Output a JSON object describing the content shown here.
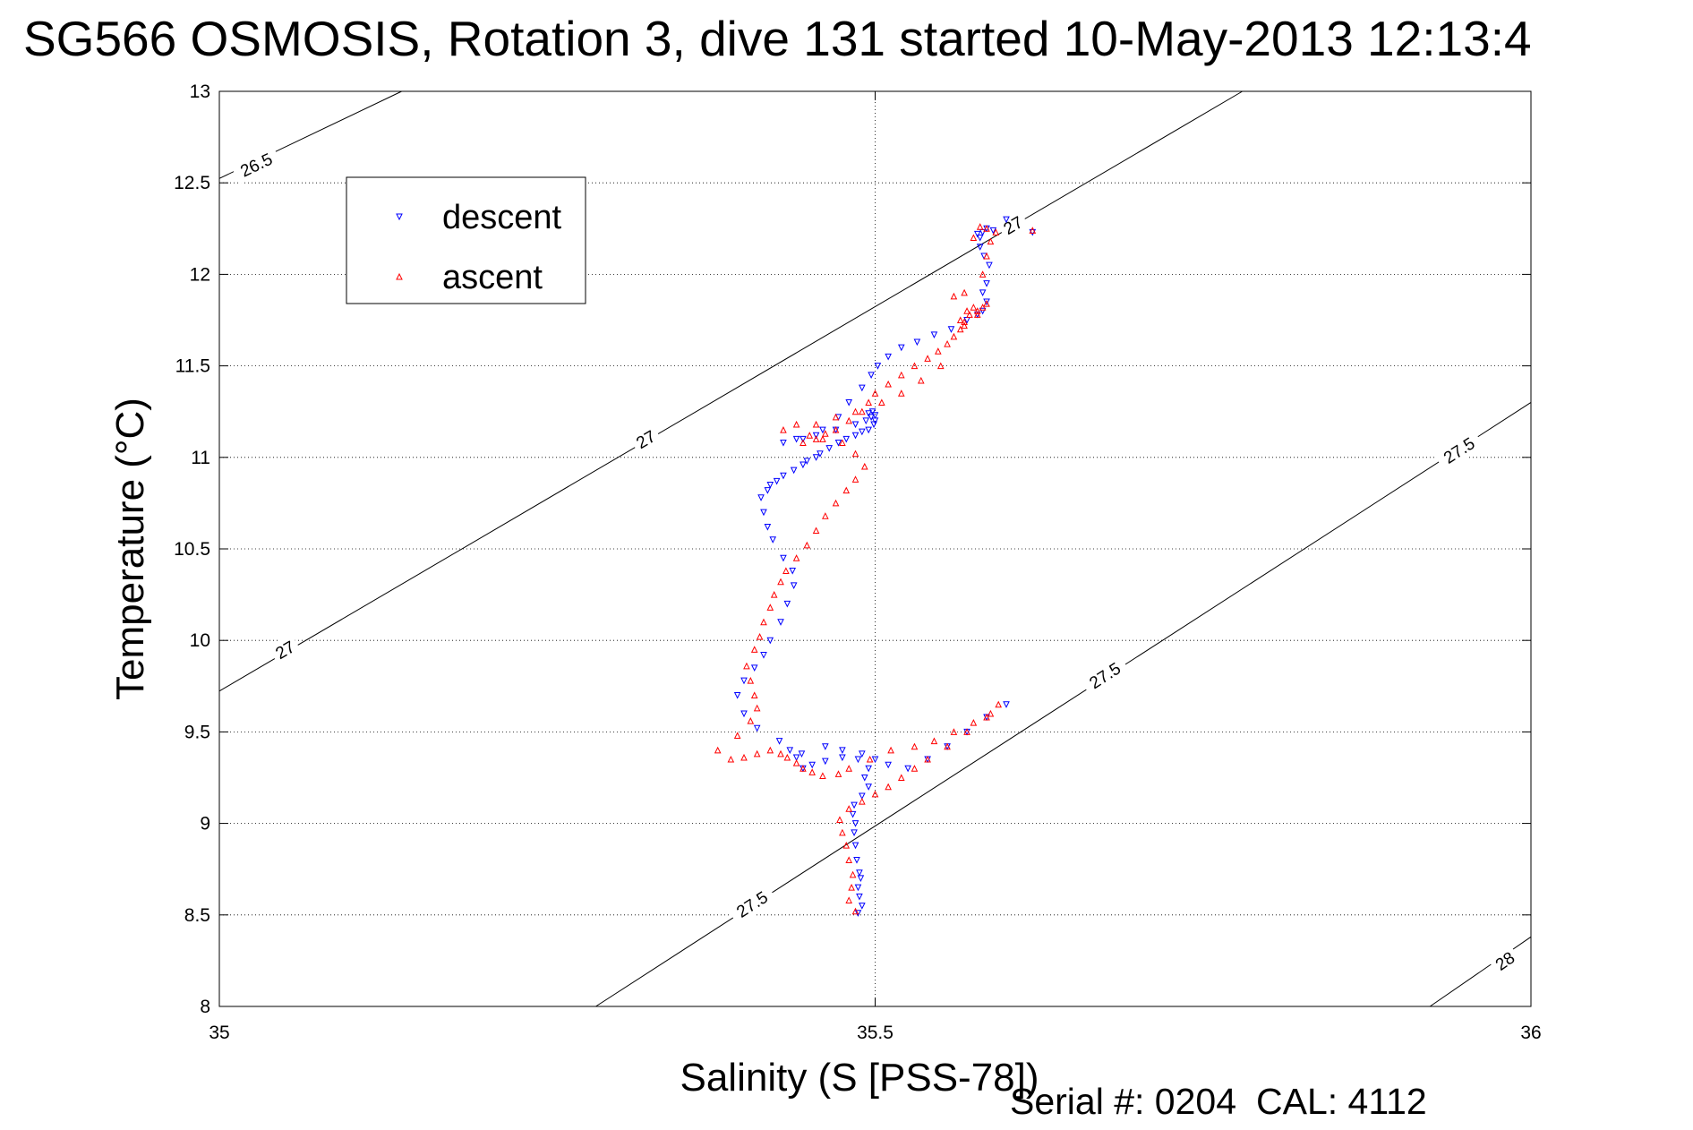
{
  "chart_data": {
    "type": "scatter",
    "title": "SG566 OSMOSIS, Rotation 3, dive 131 started 10-May-2013 12:13:4",
    "xlabel": "Salinity (S [PSS-78])",
    "ylabel": "Temperature (°C)",
    "xlim": [
      35,
      36
    ],
    "ylim": [
      8,
      13
    ],
    "x_ticks": [
      "35",
      "35.5",
      "36"
    ],
    "y_ticks": [
      "8",
      "8.5",
      "9",
      "9.5",
      "10",
      "10.5",
      "11",
      "11.5",
      "12",
      "12.5",
      "13"
    ],
    "grid": "dotted",
    "legend_position": "top-left",
    "density_contours": [
      {
        "level": "26.5",
        "x": [
          35.0,
          35.139
        ],
        "y": [
          12.524,
          13.0
        ],
        "labels": [
          {
            "x": 35.028,
            "y": 12.6
          }
        ]
      },
      {
        "level": "27",
        "x": [
          35.0,
          35.78
        ],
        "y": [
          9.723,
          13.0
        ],
        "labels": [
          {
            "x": 35.05,
            "y": 9.95
          },
          {
            "x": 35.325,
            "y": 11.1
          },
          {
            "x": 35.605,
            "y": 12.27
          }
        ]
      },
      {
        "level": "27.5",
        "x": [
          35.287,
          36.0
        ],
        "y": [
          8.0,
          11.3
        ],
        "labels": [
          {
            "x": 35.406,
            "y": 8.56
          },
          {
            "x": 35.675,
            "y": 9.81
          },
          {
            "x": 35.945,
            "y": 11.04
          }
        ]
      },
      {
        "level": "28",
        "x": [
          35.923,
          36.0
        ],
        "y": [
          8.0,
          8.38
        ],
        "labels": [
          {
            "x": 35.98,
            "y": 8.25
          }
        ]
      }
    ],
    "series": [
      {
        "name": "descent",
        "color": "#0000ff",
        "marker": "triangle-down",
        "x": [
          35.487,
          35.49,
          35.488,
          35.487,
          35.489,
          35.488,
          35.486,
          35.485,
          35.484,
          35.485,
          35.483,
          35.484,
          35.49,
          35.495,
          35.492,
          35.495,
          35.487,
          35.475,
          35.462,
          35.452,
          35.445,
          35.44,
          35.435,
          35.427,
          35.41,
          35.4,
          35.395,
          35.4,
          35.408,
          35.415,
          35.42,
          35.428,
          35.433,
          35.438,
          35.437,
          35.43,
          35.422,
          35.418,
          35.415,
          35.413,
          35.418,
          35.42,
          35.425,
          35.43,
          35.438,
          35.445,
          35.448,
          35.455,
          35.458,
          35.465,
          35.472,
          35.478,
          35.485,
          35.49,
          35.495,
          35.499,
          35.5,
          35.497,
          35.5,
          35.498,
          35.495,
          35.493,
          35.485,
          35.47,
          35.455,
          35.44,
          35.43,
          35.445,
          35.46,
          35.472,
          35.48,
          35.49,
          35.497,
          35.502,
          35.51,
          35.52,
          35.532,
          35.545,
          35.558,
          35.57,
          35.578,
          35.582,
          35.585,
          35.582,
          35.585,
          35.587,
          35.583,
          35.58,
          35.58,
          35.582,
          35.585,
          35.59,
          35.578,
          35.6,
          35.62,
          35.475,
          35.49,
          35.5,
          35.51,
          35.525,
          35.54,
          35.555,
          35.57,
          35.585,
          35.6,
          35.462,
          35.444
        ],
        "y": [
          8.51,
          8.55,
          8.6,
          8.65,
          8.7,
          8.73,
          8.8,
          8.88,
          8.95,
          9.0,
          9.05,
          9.1,
          9.15,
          9.2,
          9.25,
          9.3,
          9.35,
          9.36,
          9.34,
          9.32,
          9.3,
          9.36,
          9.4,
          9.45,
          9.52,
          9.6,
          9.7,
          9.78,
          9.85,
          9.92,
          10.0,
          10.1,
          10.2,
          10.3,
          10.38,
          10.45,
          10.55,
          10.62,
          10.7,
          10.78,
          10.82,
          10.85,
          10.87,
          10.9,
          10.93,
          10.96,
          10.98,
          11.0,
          11.02,
          11.05,
          11.08,
          11.1,
          11.12,
          11.14,
          11.15,
          11.18,
          11.2,
          11.22,
          11.23,
          11.25,
          11.24,
          11.2,
          11.18,
          11.15,
          11.12,
          11.1,
          11.08,
          11.1,
          11.15,
          11.22,
          11.3,
          11.38,
          11.45,
          11.5,
          11.55,
          11.6,
          11.63,
          11.67,
          11.7,
          11.75,
          11.78,
          11.8,
          11.85,
          11.9,
          11.95,
          12.05,
          12.1,
          12.15,
          12.2,
          12.23,
          12.25,
          12.24,
          12.22,
          12.3,
          12.23,
          9.4,
          9.38,
          9.35,
          9.32,
          9.3,
          9.35,
          9.42,
          9.5,
          9.58,
          9.65,
          9.42,
          9.38
        ]
      },
      {
        "name": "ascent",
        "color": "#ff0000",
        "marker": "triangle-up",
        "x": [
          35.485,
          35.48,
          35.482,
          35.483,
          35.48,
          35.478,
          35.475,
          35.473,
          35.48,
          35.49,
          35.5,
          35.51,
          35.52,
          35.53,
          35.54,
          35.555,
          35.57,
          35.585,
          35.594,
          35.588,
          35.575,
          35.56,
          35.545,
          35.53,
          35.512,
          35.496,
          35.48,
          35.472,
          35.46,
          35.452,
          35.445,
          35.44,
          35.433,
          35.428,
          35.42,
          35.41,
          35.4,
          35.39,
          35.38,
          35.395,
          35.405,
          35.41,
          35.408,
          35.405,
          35.402,
          35.408,
          35.412,
          35.415,
          35.42,
          35.423,
          35.428,
          35.432,
          35.44,
          35.448,
          35.455,
          35.462,
          35.47,
          35.478,
          35.485,
          35.492,
          35.485,
          35.475,
          35.462,
          35.455,
          35.47,
          35.485,
          35.495,
          35.5,
          35.51,
          35.52,
          35.53,
          35.54,
          35.548,
          35.555,
          35.56,
          35.565,
          35.568,
          35.572,
          35.578,
          35.582,
          35.585,
          35.578,
          35.57,
          35.565,
          35.568,
          35.575,
          35.582,
          35.585,
          35.588,
          35.592,
          35.585,
          35.62,
          35.58,
          35.575,
          35.568,
          35.56,
          35.55,
          35.535,
          35.52,
          35.505,
          35.49,
          35.48,
          35.47,
          35.46,
          35.45,
          35.44,
          35.43,
          35.445,
          35.455
        ],
        "y": [
          8.52,
          8.58,
          8.65,
          8.72,
          8.8,
          8.88,
          8.95,
          9.02,
          9.08,
          9.12,
          9.16,
          9.2,
          9.25,
          9.3,
          9.35,
          9.42,
          9.5,
          9.58,
          9.65,
          9.6,
          9.55,
          9.5,
          9.45,
          9.42,
          9.4,
          9.35,
          9.3,
          9.27,
          9.26,
          9.28,
          9.3,
          9.33,
          9.36,
          9.38,
          9.4,
          9.38,
          9.36,
          9.35,
          9.4,
          9.48,
          9.56,
          9.63,
          9.7,
          9.78,
          9.86,
          9.95,
          10.02,
          10.1,
          10.18,
          10.25,
          10.32,
          10.38,
          10.45,
          10.52,
          10.6,
          10.68,
          10.75,
          10.82,
          10.88,
          10.95,
          11.02,
          11.08,
          11.13,
          11.18,
          11.22,
          11.25,
          11.3,
          11.35,
          11.4,
          11.45,
          11.5,
          11.54,
          11.58,
          11.62,
          11.66,
          11.7,
          11.74,
          11.78,
          11.8,
          11.82,
          11.84,
          11.78,
          11.8,
          11.75,
          11.72,
          11.82,
          12.0,
          12.1,
          12.18,
          12.23,
          12.25,
          12.24,
          12.26,
          12.2,
          11.9,
          11.88,
          11.5,
          11.42,
          11.35,
          11.3,
          11.25,
          11.2,
          11.15,
          11.1,
          11.12,
          11.18,
          11.15,
          11.08,
          11.1
        ]
      }
    ]
  },
  "footer": {
    "serial": "Serial #: 0204",
    "cal": "CAL: 4112"
  }
}
